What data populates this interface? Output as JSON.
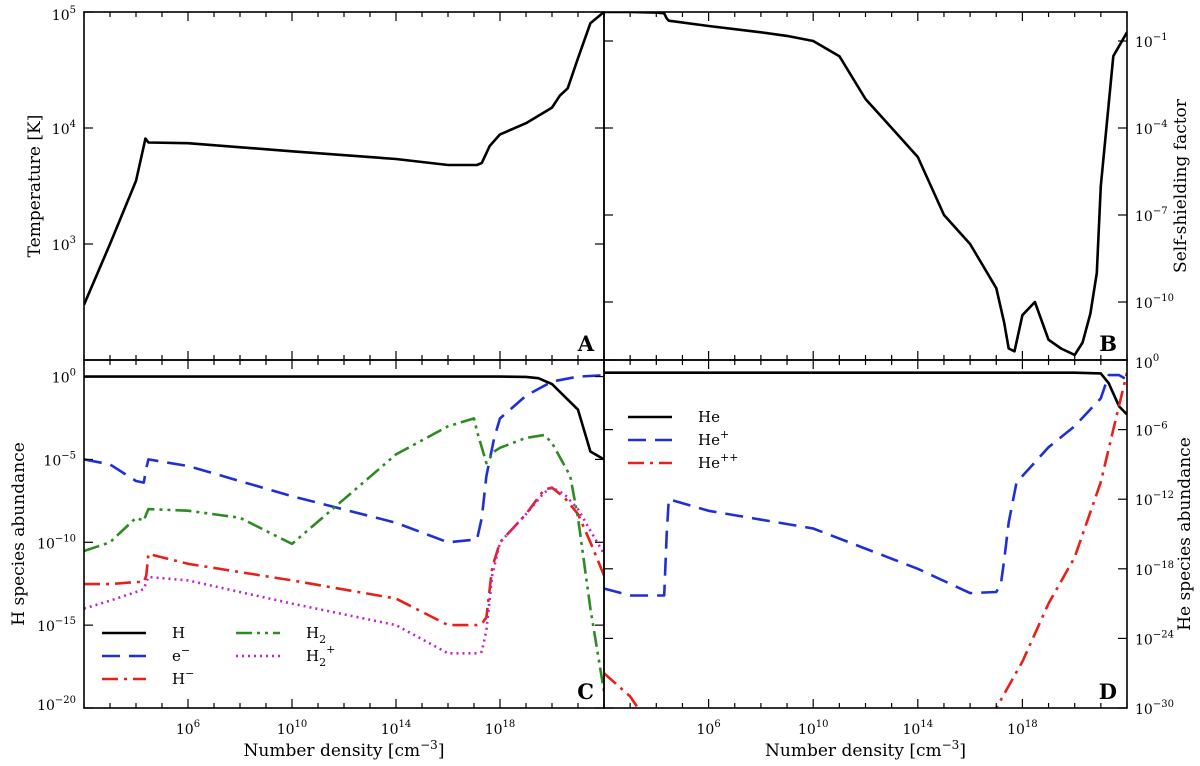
{
  "chart_data": [
    {
      "id": "A",
      "type": "line",
      "panel_label": "A",
      "xscale": "log",
      "yscale": "log",
      "xlim": [
        100.0,
        1e+22
      ],
      "ylim": [
        100,
        100000
      ],
      "xticks": [
        1000000.0,
        10000000000.0,
        100000000000000.0,
        1e+18
      ],
      "xtick_labels": [],
      "yticks": [
        1000,
        10000,
        100000
      ],
      "ytick_labels": [
        [
          "10",
          "3"
        ],
        [
          "10",
          "4"
        ],
        [
          "10",
          "5"
        ]
      ],
      "ytick_side": "left",
      "xlabel": "",
      "ylabel": "Temperature [K]",
      "series": [
        {
          "name": "",
          "color": "#000000",
          "dash": "solid",
          "x": [
            100.0,
            1000.0,
            10000.0,
            20000.0,
            23000.0,
            30000.0,
            1000000.0,
            10000000000.0,
            100000000000000.0,
            1e+16,
            1.3e+17,
            2e+17,
            4e+17,
            1e+18,
            1e+19,
            1e+20,
            2e+20,
            4e+20,
            1e+21,
            3e+21,
            1e+22
          ],
          "y": [
            300,
            1000,
            3500,
            7000,
            8100,
            7500,
            7400,
            6300,
            5400,
            4800,
            4800,
            5000,
            7000,
            8800,
            11000,
            15000,
            19000,
            22000,
            40000,
            80000,
            100000
          ]
        }
      ]
    },
    {
      "id": "B",
      "type": "line",
      "panel_label": "B",
      "xscale": "log",
      "yscale": "log",
      "xlim": [
        100.0,
        1e+22
      ],
      "ylim": [
        1e-12,
        1
      ],
      "xticks": [
        1000000.0,
        10000000000.0,
        100000000000000.0,
        1e+18
      ],
      "xtick_labels": [],
      "yticks": [
        1e-10,
        1e-07,
        0.0001,
        0.1
      ],
      "ytick_labels": [
        [
          "10",
          "−10"
        ],
        [
          "10",
          "−7"
        ],
        [
          "10",
          "−4"
        ],
        [
          "10",
          "−1"
        ]
      ],
      "ytick_side": "right",
      "xlabel": "",
      "ylabel": "Self-shielding factor",
      "series": [
        {
          "name": "",
          "color": "#000000",
          "dash": "solid",
          "x": [
            100.0,
            1000.0,
            10000.0,
            20000.0,
            25000.0,
            30000.0,
            1000000.0,
            100000000.0,
            1000000000.0,
            10000000000.0,
            100000000000.0,
            1000000000000.0,
            10000000000000.0,
            100000000000000.0,
            1000000000000000.0,
            1e+16,
            1e+17,
            2e+17,
            3e+17,
            5e+17,
            1e+18,
            3e+18,
            1e+19,
            3e+19,
            1e+20,
            2e+20,
            4e+20,
            7e+20,
            1e+21,
            3e+21,
            1e+22
          ],
          "y": [
            1,
            1,
            0.95,
            0.9,
            0.6,
            0.5,
            0.33,
            0.2,
            0.15,
            0.1,
            0.03,
            0.001,
            0.0001,
            1e-05,
            1e-07,
            1e-08,
            3e-10,
            2e-11,
            2.5e-12,
            2e-12,
            3.5e-11,
            1e-10,
            5e-12,
            2.5e-12,
            1.5e-12,
            4e-12,
            4e-11,
            1e-09,
            1e-06,
            0.03,
            0.2
          ]
        }
      ]
    },
    {
      "id": "C",
      "type": "line",
      "panel_label": "C",
      "xscale": "log",
      "yscale": "log",
      "xlim": [
        100.0,
        1e+22
      ],
      "ylim": [
        1e-20,
        10
      ],
      "xticks": [
        1000000.0,
        10000000000.0,
        100000000000000.0,
        1e+18
      ],
      "xtick_labels": [
        [
          "10",
          "6"
        ],
        [
          "10",
          "10"
        ],
        [
          "10",
          "14"
        ],
        [
          "10",
          "18"
        ]
      ],
      "yticks": [
        1e-20,
        1e-15,
        1e-10,
        1e-05,
        1
      ],
      "ytick_labels": [
        [
          "10",
          "−20"
        ],
        [
          "10",
          "−15"
        ],
        [
          "10",
          "−10"
        ],
        [
          "10",
          "−5"
        ],
        [
          "10",
          "0"
        ]
      ],
      "ytick_side": "left",
      "xlabel": "Number density [cm−3]",
      "ylabel": "H species abundance",
      "legend_position": "lower-left",
      "series": [
        {
          "name": "H",
          "color": "#000000",
          "dash": "solid",
          "x": [
            100.0,
            1000000.0,
            10000000000.0,
            100000000000000.0,
            1e+18,
            1e+19,
            3e+19,
            1e+20,
            1e+21,
            3e+21,
            1e+22
          ],
          "y": [
            1,
            1,
            1,
            1,
            1,
            0.95,
            0.8,
            0.35,
            0.01,
            3e-05,
            1e-05
          ]
        },
        {
          "name": "e−",
          "color": "#1f2fd6",
          "dash": "dashed",
          "x": [
            100.0,
            1000.0,
            10000.0,
            20000.0,
            25000.0,
            30000.0,
            1000000.0,
            10000000000.0,
            100000000000000.0,
            1e+16,
            1.3e+17,
            2e+17,
            3e+17,
            6e+17,
            1e+18,
            1e+19,
            1e+20,
            1e+21,
            1e+22
          ],
          "y": [
            1e-05,
            5e-06,
            5e-07,
            4e-07,
            3e-06,
            1e-05,
            4e-06,
            6e-08,
            1.5e-09,
            1e-10,
            1.5e-10,
            3e-09,
            1e-06,
            0.0002,
            0.003,
            0.07,
            0.5,
            1,
            1.2
          ]
        },
        {
          "name": "H−",
          "color": "#e8201a",
          "dash": "dashdot",
          "x": [
            100.0,
            1000.0,
            10000.0,
            20000.0,
            25000.0,
            30000.0,
            1000000.0,
            10000000000.0,
            100000000000000.0,
            1e+16,
            1.3e+17,
            2e+17,
            3e+17,
            5e+17,
            1e+18,
            1e+19,
            5e+19,
            1e+20,
            3e+20,
            1e+21,
            3e+21,
            1e+22
          ],
          "y": [
            3e-13,
            3e-13,
            4e-13,
            4e-13,
            1e-12,
            2e-11,
            5e-12,
            5e-13,
            4e-14,
            1e-15,
            1e-15,
            1.2e-15,
            3e-15,
            3e-12,
            1e-10,
            5e-09,
            1.5e-07,
            2e-07,
            5e-08,
            5e-09,
            1e-10,
            1e-12
          ]
        },
        {
          "name": "H2",
          "color": "#2e8b22",
          "dash": "dashdotdot",
          "x": [
            100.0,
            1000.0,
            10000.0,
            20000.0,
            25000.0,
            30000.0,
            1000000.0,
            100000000.0,
            10000000000.0,
            1000000000000.0,
            100000000000000.0,
            1e+16,
            1e+17,
            1.3e+17,
            3e+17,
            6e+17,
            1e+18,
            1e+19,
            5e+19,
            1e+20,
            5e+20,
            1e+21,
            3e+21,
            1e+22
          ],
          "y": [
            3e-11,
            1e-10,
            3e-09,
            2e-09,
            5e-09,
            1e-08,
            8e-09,
            3e-09,
            8e-11,
            4e-08,
            2e-05,
            0.001,
            0.003,
            0.0005,
            6e-06,
            3e-05,
            5e-05,
            0.0002,
            0.0003,
            0.0001,
            1e-06,
            3e-09,
            1e-14,
            1e-19
          ]
        },
        {
          "name": "H2+",
          "color": "#c023c9",
          "dash": "dotted",
          "x": [
            100.0,
            1000.0,
            10000.0,
            20000.0,
            25000.0,
            30000.0,
            1000000.0,
            10000000000.0,
            100000000000000.0,
            1e+16,
            1.3e+17,
            2e+17,
            3e+17,
            5e+17,
            1e+18,
            1e+19,
            5e+19,
            1e+20,
            3e+20,
            1e+21,
            3e+21,
            1e+22
          ],
          "y": [
            1e-14,
            3e-14,
            1e-13,
            1.5e-13,
            4e-13,
            8e-13,
            5e-13,
            2e-14,
            1e-15,
            2e-17,
            2e-17,
            2.5e-17,
            5e-16,
            1e-12,
            1e-10,
            5e-09,
            1e-07,
            2e-07,
            8e-08,
            1e-08,
            5e-10,
            2e-11
          ]
        }
      ],
      "legend": {
        "col1": [
          {
            "label": "H",
            "series": 0
          },
          {
            "label": "e",
            "sup": "−",
            "series": 1
          },
          {
            "label": "H",
            "sup": "−",
            "series": 2
          }
        ],
        "col2": [
          {
            "label": "H",
            "sub": "2",
            "series": 3
          },
          {
            "label": "H",
            "sub": "2",
            "sup": "+",
            "series": 4
          }
        ]
      }
    },
    {
      "id": "D",
      "type": "line",
      "panel_label": "D",
      "xscale": "log",
      "yscale": "log",
      "xlim": [
        100.0,
        1e+22
      ],
      "ylim": [
        1e-30,
        1
      ],
      "xticks": [
        1000000.0,
        10000000000.0,
        100000000000000.0,
        1e+18
      ],
      "xtick_labels": [
        [
          "10",
          "6"
        ],
        [
          "10",
          "10"
        ],
        [
          "10",
          "14"
        ],
        [
          "10",
          "18"
        ]
      ],
      "yticks": [
        1e-30,
        1e-24,
        1e-18,
        1e-12,
        1e-06,
        1
      ],
      "ytick_labels": [
        [
          "10",
          "−30"
        ],
        [
          "10",
          "−24"
        ],
        [
          "10",
          "−18"
        ],
        [
          "10",
          "−12"
        ],
        [
          "10",
          "−6"
        ],
        [
          "10",
          "0"
        ]
      ],
      "ytick_side": "right",
      "xlabel": "Number density [cm−3]",
      "ylabel": "He species abundance",
      "legend_position": "upper-left",
      "series": [
        {
          "name": "He",
          "color": "#000000",
          "dash": "solid",
          "x": [
            100.0,
            1000000.0,
            10000000000.0,
            100000000000000.0,
            1e+18,
            1e+20,
            1e+21,
            2e+21,
            5e+21,
            1e+22
          ],
          "y": [
            0.08,
            0.08,
            0.08,
            0.08,
            0.08,
            0.08,
            0.07,
            0.01,
            0.0001,
            2e-05
          ]
        },
        {
          "name": "He+",
          "color": "#1f2fd6",
          "dash": "dashed",
          "x": [
            100.0,
            1000.0,
            10000.0,
            20000.0,
            25000.0,
            30000.0,
            1000000.0,
            10000000000.0,
            100000000000000.0,
            1e+16,
            1e+17,
            1.5e+17,
            2e+17,
            3e+17,
            6e+17,
            1e+18,
            1e+19,
            1e+20,
            1e+21,
            2e+21,
            5e+21,
            1e+22
          ],
          "y": [
            2e-20,
            5e-21,
            5e-21,
            5e-21,
            1e-15,
            1e-12,
            1e-13,
            3e-15,
            1e-18,
            8e-21,
            1e-20,
            5e-20,
            5e-18,
            1e-14,
            3e-11,
            1e-10,
            3e-08,
            2e-06,
            0.0005,
            0.05,
            0.05,
            0.02
          ]
        },
        {
          "name": "He++",
          "color": "#e8201a",
          "dash": "dashdot",
          "x": [
            100.0,
            1000.0,
            2000.0,
            3000.0,
            5e+16,
            1e+17,
            1e+18,
            1e+19,
            1e+20,
            1e+21,
            3e+21,
            1e+22
          ],
          "y": [
            1e-27,
            1e-29,
            1e-30,
            3e-31,
            1e-31,
            1e-30,
            1e-26,
            1e-21,
            1e-17,
            3e-11,
            1e-06,
            0.08
          ]
        }
      ],
      "legend": {
        "col1": [
          {
            "label": "He",
            "series": 0
          },
          {
            "label": "He",
            "sup": "+",
            "series": 1
          },
          {
            "label": "He",
            "sup": "++",
            "series": 2
          }
        ]
      }
    }
  ]
}
